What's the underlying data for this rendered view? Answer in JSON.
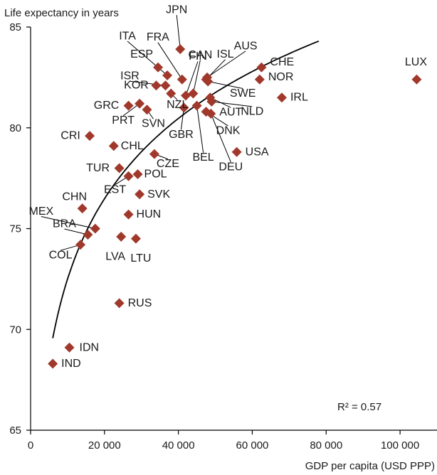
{
  "chart_data": {
    "type": "scatter",
    "title": "",
    "ylabel": "Life expectancy in years",
    "xlabel": "GDP per capita (USD PPP)",
    "xlim": [
      0,
      110000
    ],
    "ylim": [
      65,
      85
    ],
    "x_ticks": [
      0,
      20000,
      40000,
      60000,
      80000,
      100000
    ],
    "x_tick_labels": [
      "0",
      "20 000",
      "40 000",
      "60 000",
      "80 000",
      "100 000"
    ],
    "y_ticks": [
      65,
      70,
      75,
      80,
      85
    ],
    "y_tick_labels": [
      "65",
      "70",
      "75",
      "80",
      "85"
    ],
    "grid": false,
    "marker_color": "#a0392b",
    "annotation": "R² = 0.57",
    "trendline": {
      "type": "logarithmic",
      "x_range": [
        6000,
        78000
      ]
    },
    "points": [
      {
        "label": "LUX",
        "x": 104500,
        "y": 82.4
      },
      {
        "label": "IRL",
        "x": 68000,
        "y": 81.5
      },
      {
        "label": "CHE",
        "x": 62500,
        "y": 83.0
      },
      {
        "label": "NOR",
        "x": 62000,
        "y": 82.4
      },
      {
        "label": "USA",
        "x": 55800,
        "y": 78.8
      },
      {
        "label": "NLD",
        "x": 49000,
        "y": 81.3
      },
      {
        "label": "DEU",
        "x": 48800,
        "y": 80.7
      },
      {
        "label": "SWE",
        "x": 48000,
        "y": 82.3
      },
      {
        "label": "AUS",
        "x": 47800,
        "y": 82.5
      },
      {
        "label": "ISL",
        "x": 47500,
        "y": 82.4
      },
      {
        "label": "DNK",
        "x": 47500,
        "y": 80.8
      },
      {
        "label": "AUT",
        "x": 48600,
        "y": 81.5
      },
      {
        "label": "BEL",
        "x": 45000,
        "y": 81.1
      },
      {
        "label": "CAN",
        "x": 44000,
        "y": 81.7
      },
      {
        "label": "FIN",
        "x": 42000,
        "y": 81.6
      },
      {
        "label": "GBR",
        "x": 41500,
        "y": 81.0
      },
      {
        "label": "JPN",
        "x": 40500,
        "y": 83.9
      },
      {
        "label": "FRA",
        "x": 41000,
        "y": 82.4
      },
      {
        "label": "ITA",
        "x": 37000,
        "y": 82.6
      },
      {
        "label": "ESP",
        "x": 34500,
        "y": 83.0
      },
      {
        "label": "ISR",
        "x": 36500,
        "y": 82.1
      },
      {
        "label": "NZL",
        "x": 38000,
        "y": 81.7
      },
      {
        "label": "KOR",
        "x": 34000,
        "y": 82.1
      },
      {
        "label": "GRC",
        "x": 26500,
        "y": 81.1
      },
      {
        "label": "PRT",
        "x": 29500,
        "y": 81.2
      },
      {
        "label": "SVN",
        "x": 31500,
        "y": 80.9
      },
      {
        "label": "CZE",
        "x": 33500,
        "y": 78.7
      },
      {
        "label": "CRI",
        "x": 16000,
        "y": 79.6
      },
      {
        "label": "CHL",
        "x": 22500,
        "y": 79.1
      },
      {
        "label": "TUR",
        "x": 24000,
        "y": 78.0
      },
      {
        "label": "EST",
        "x": 26500,
        "y": 77.6
      },
      {
        "label": "POL",
        "x": 29000,
        "y": 77.7
      },
      {
        "label": "SVK",
        "x": 29500,
        "y": 76.7
      },
      {
        "label": "HUN",
        "x": 26500,
        "y": 75.7
      },
      {
        "label": "LVA",
        "x": 24500,
        "y": 74.6
      },
      {
        "label": "LTU",
        "x": 28500,
        "y": 74.5
      },
      {
        "label": "CHN",
        "x": 14000,
        "y": 76.0
      },
      {
        "label": "MEX",
        "x": 17500,
        "y": 75.0
      },
      {
        "label": "BRA",
        "x": 15500,
        "y": 74.7
      },
      {
        "label": "COL",
        "x": 13500,
        "y": 74.2
      },
      {
        "label": "RUS",
        "x": 24000,
        "y": 71.3
      },
      {
        "label": "IDN",
        "x": 10500,
        "y": 69.1
      },
      {
        "label": "IND",
        "x": 6000,
        "y": 68.3
      }
    ]
  }
}
